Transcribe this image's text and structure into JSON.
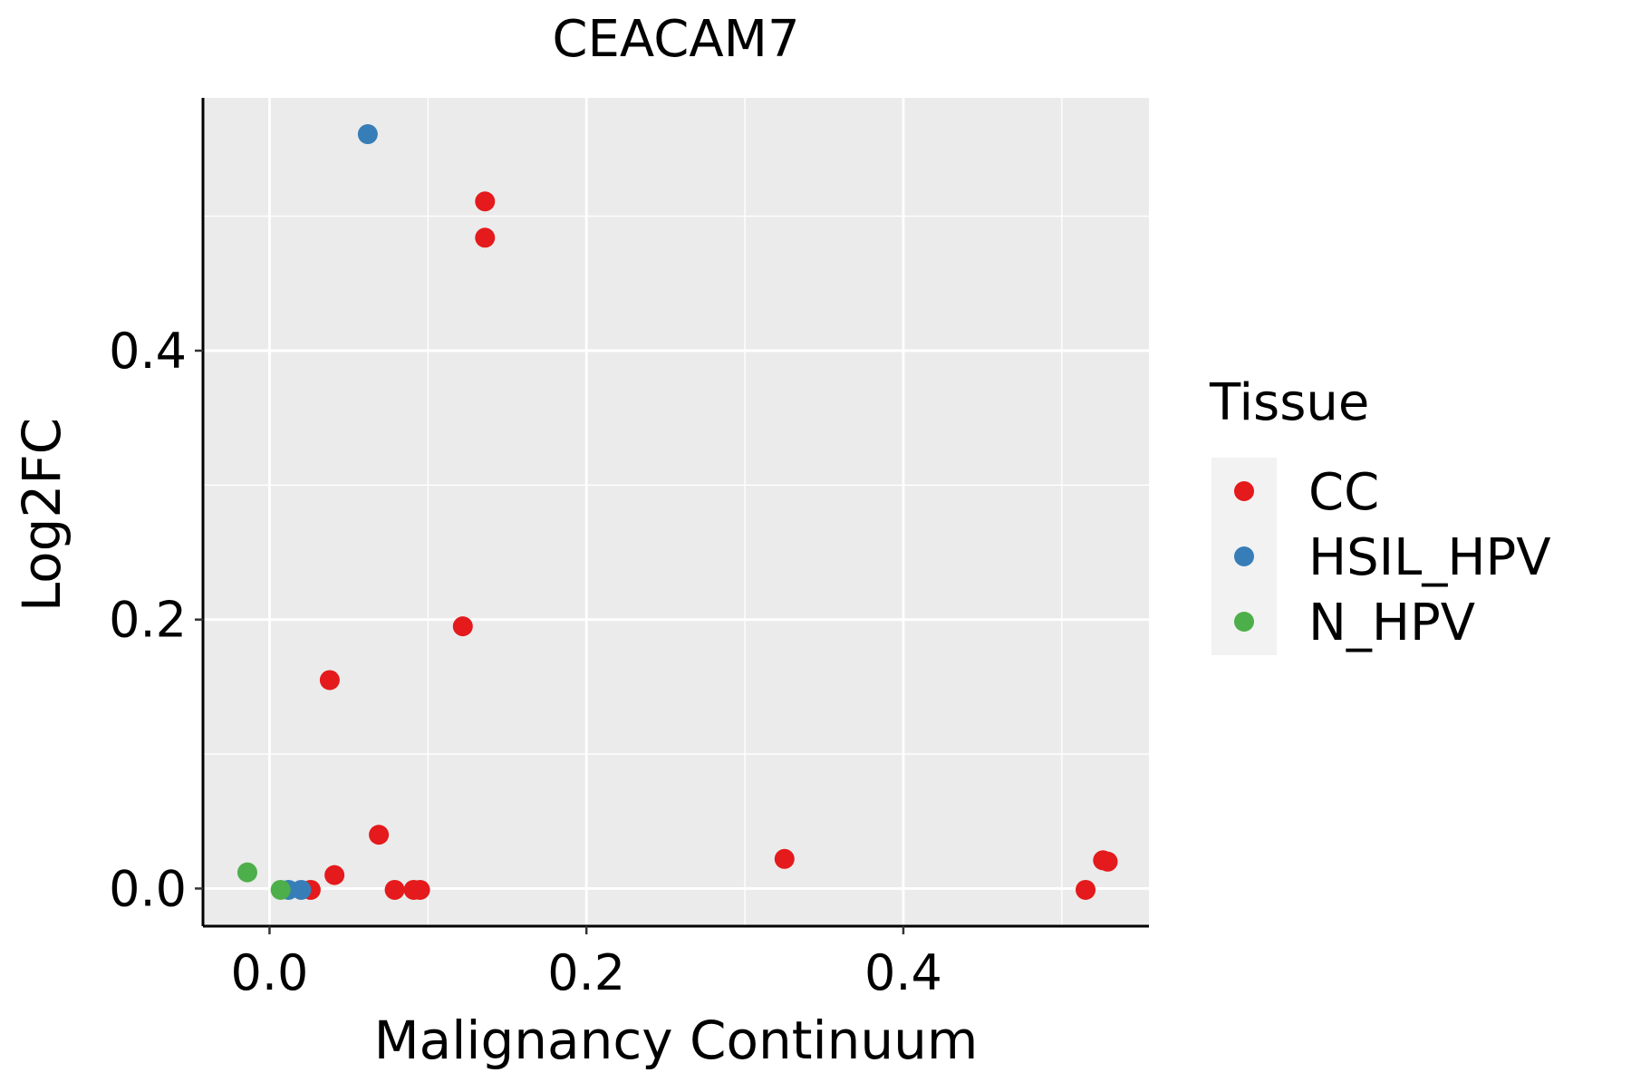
{
  "colors": {
    "CC": "#E41A1C",
    "HSIL_HPV": "#377EB8",
    "N_HPV": "#4DAF4A",
    "panel_bg": "#EBEBEB",
    "grid": "#FFFFFF",
    "legend_key_bg": "#F2F2F2"
  },
  "chart_data": {
    "type": "scatter",
    "title": "CEACAM7",
    "xlabel": "Malignancy Continuum",
    "ylabel": "Log2FC",
    "xlim": [
      -0.042,
      0.555
    ],
    "ylim": [
      -0.028,
      0.588
    ],
    "x_ticks": [
      0.0,
      0.2,
      0.4
    ],
    "x_tick_labels": [
      "0.0",
      "0.2",
      "0.4"
    ],
    "y_ticks": [
      0.0,
      0.2,
      0.4
    ],
    "y_tick_labels": [
      "0.0",
      "0.2",
      "0.4"
    ],
    "x_minor_breaks": [
      -0.1,
      0.1,
      0.3,
      0.5
    ],
    "y_minor_breaks": [
      0.1,
      0.3,
      0.5
    ],
    "grid": true,
    "legend": {
      "title": "Tissue",
      "placement": "right",
      "entries": [
        "CC",
        "HSIL_HPV",
        "N_HPV"
      ]
    },
    "series": [
      {
        "name": "CC",
        "points": [
          {
            "x": 0.136,
            "y": 0.511
          },
          {
            "x": 0.136,
            "y": 0.484
          },
          {
            "x": 0.122,
            "y": 0.195
          },
          {
            "x": 0.038,
            "y": 0.155
          },
          {
            "x": 0.069,
            "y": 0.04
          },
          {
            "x": 0.041,
            "y": 0.01
          },
          {
            "x": 0.026,
            "y": -0.001
          },
          {
            "x": 0.079,
            "y": -0.001
          },
          {
            "x": 0.091,
            "y": -0.001
          },
          {
            "x": 0.095,
            "y": -0.001
          },
          {
            "x": 0.325,
            "y": 0.022
          },
          {
            "x": 0.526,
            "y": 0.021
          },
          {
            "x": 0.529,
            "y": 0.02
          },
          {
            "x": 0.515,
            "y": -0.001
          }
        ]
      },
      {
        "name": "HSIL_HPV",
        "points": [
          {
            "x": 0.062,
            "y": 0.561
          },
          {
            "x": 0.012,
            "y": -0.001
          },
          {
            "x": 0.02,
            "y": -0.001
          }
        ]
      },
      {
        "name": "N_HPV",
        "points": [
          {
            "x": -0.014,
            "y": 0.012
          },
          {
            "x": 0.007,
            "y": -0.001
          }
        ]
      }
    ]
  }
}
